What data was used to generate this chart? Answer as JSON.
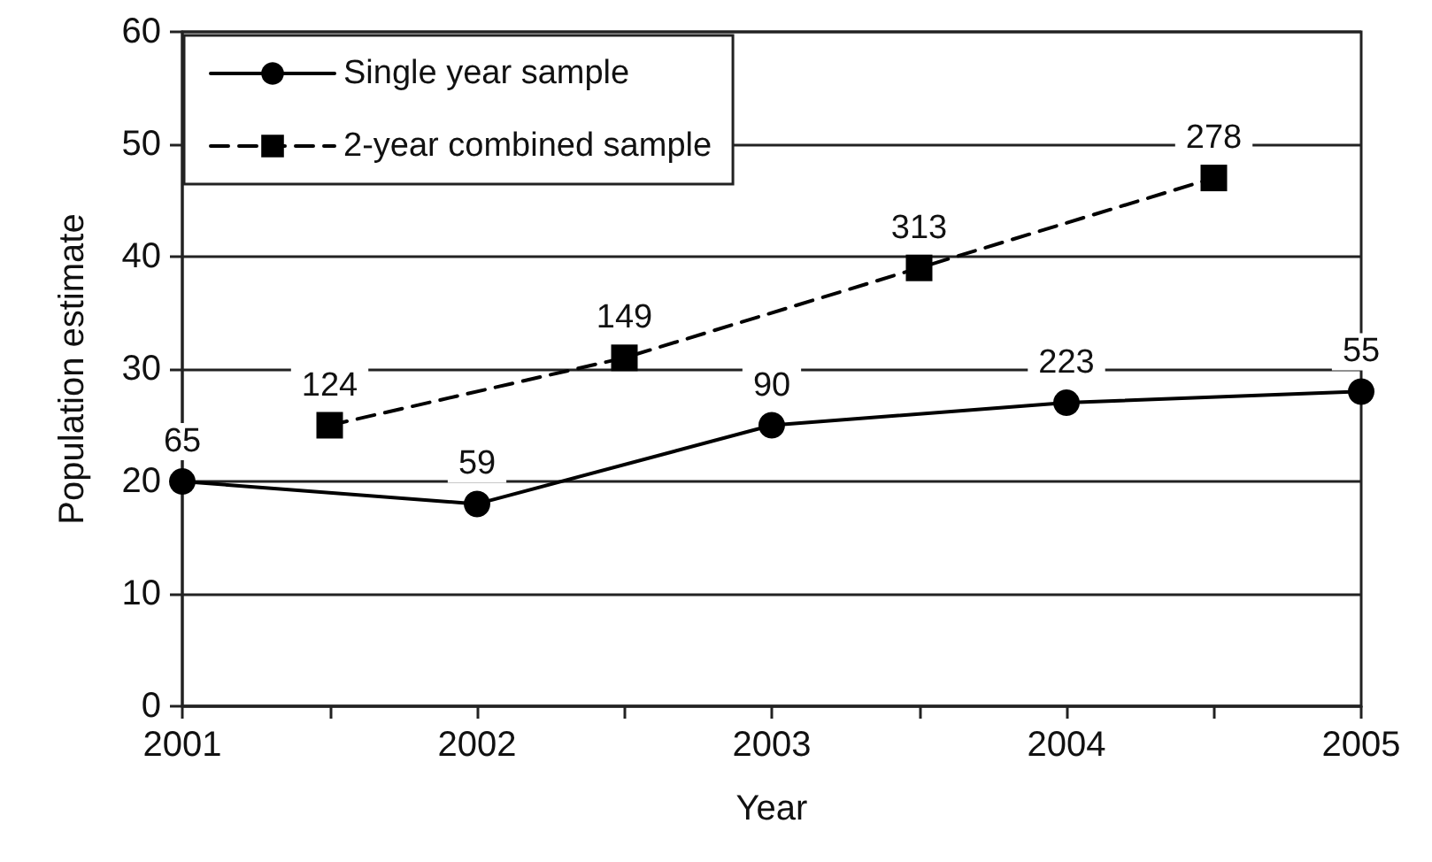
{
  "chart_data": {
    "type": "line",
    "xlabel": "Year",
    "ylabel": "Population estimate",
    "xlim": [
      2001,
      2005
    ],
    "xticks": [
      2001,
      {
        "value": 2001.5,
        "label": null
      },
      2002,
      {
        "value": 2002.5,
        "label": null
      },
      2003,
      {
        "value": 2003.5,
        "label": null
      },
      2004,
      {
        "value": 2004.5,
        "label": null
      },
      2005
    ],
    "ylim": [
      0,
      60
    ],
    "yticks": [
      0,
      10,
      20,
      30,
      40,
      50,
      60
    ],
    "grid": "y",
    "legend": "top left",
    "series": [
      {
        "name": "Single year sample",
        "color": "#000000",
        "marker": "circle",
        "line_style": "solid",
        "x": [
          2001,
          2002,
          2003,
          2004,
          2005
        ],
        "values": [
          20,
          18,
          25,
          27,
          28
        ]
      },
      {
        "name": "2-year combined sample",
        "color": "#000000",
        "marker": "square",
        "line_style": "dashed",
        "x": [
          2001.5,
          2002.5,
          2003.5,
          2004.5
        ],
        "values": [
          25,
          31,
          39,
          47
        ]
      }
    ],
    "annotations": [
      {
        "text": "65",
        "x": 2001,
        "y": 20
      },
      {
        "text": "59",
        "x": 2002,
        "y": 18
      },
      {
        "text": "90",
        "x": 2003,
        "y": 25
      },
      {
        "text": "223",
        "x": 2004,
        "y": 27
      },
      {
        "text": "55",
        "x": 2005,
        "y": 28
      },
      {
        "text": "124",
        "x": 2001.5,
        "y": 25
      },
      {
        "text": "149",
        "x": 2002.5,
        "y": 31
      },
      {
        "text": "313",
        "x": 2003.5,
        "y": 39
      },
      {
        "text": "278",
        "x": 2004.5,
        "y": 47
      }
    ]
  }
}
